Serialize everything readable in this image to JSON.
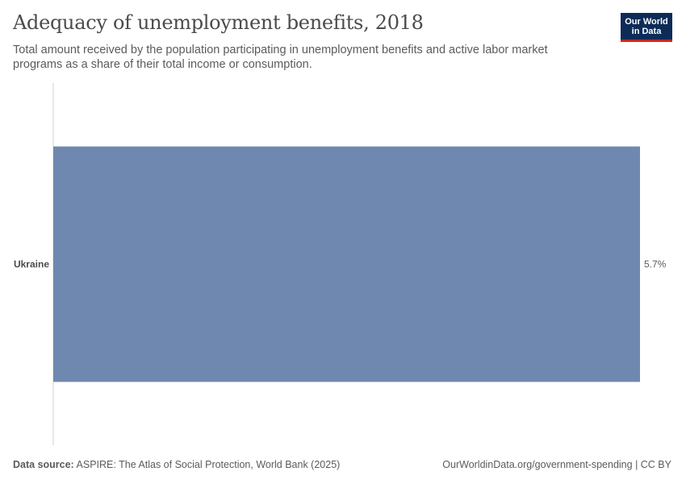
{
  "title": "Adequacy of unemployment benefits, 2018",
  "subtitle": "Total amount received by the population participating in unemployment benefits and active labor market programs as a share of their total income or consumption.",
  "logo": {
    "line1": "Our World",
    "line2": "in Data"
  },
  "footer": {
    "source_label": "Data source:",
    "source_text": "ASPIRE: The Atlas of Social Protection, World Bank (2025)",
    "url": "OurWorldinData.org/government-spending | CC BY"
  },
  "colors": {
    "bar": "#6f88b0",
    "axis": "#d0d0d0"
  },
  "chart_data": {
    "type": "bar",
    "orientation": "horizontal",
    "title": "Adequacy of unemployment benefits, 2018",
    "categories": [
      "Ukraine"
    ],
    "values": [
      5.7
    ],
    "value_labels": [
      "5.7%"
    ],
    "unit": "%",
    "xlim": [
      0,
      5.7
    ],
    "grid": false,
    "legend": "none"
  }
}
